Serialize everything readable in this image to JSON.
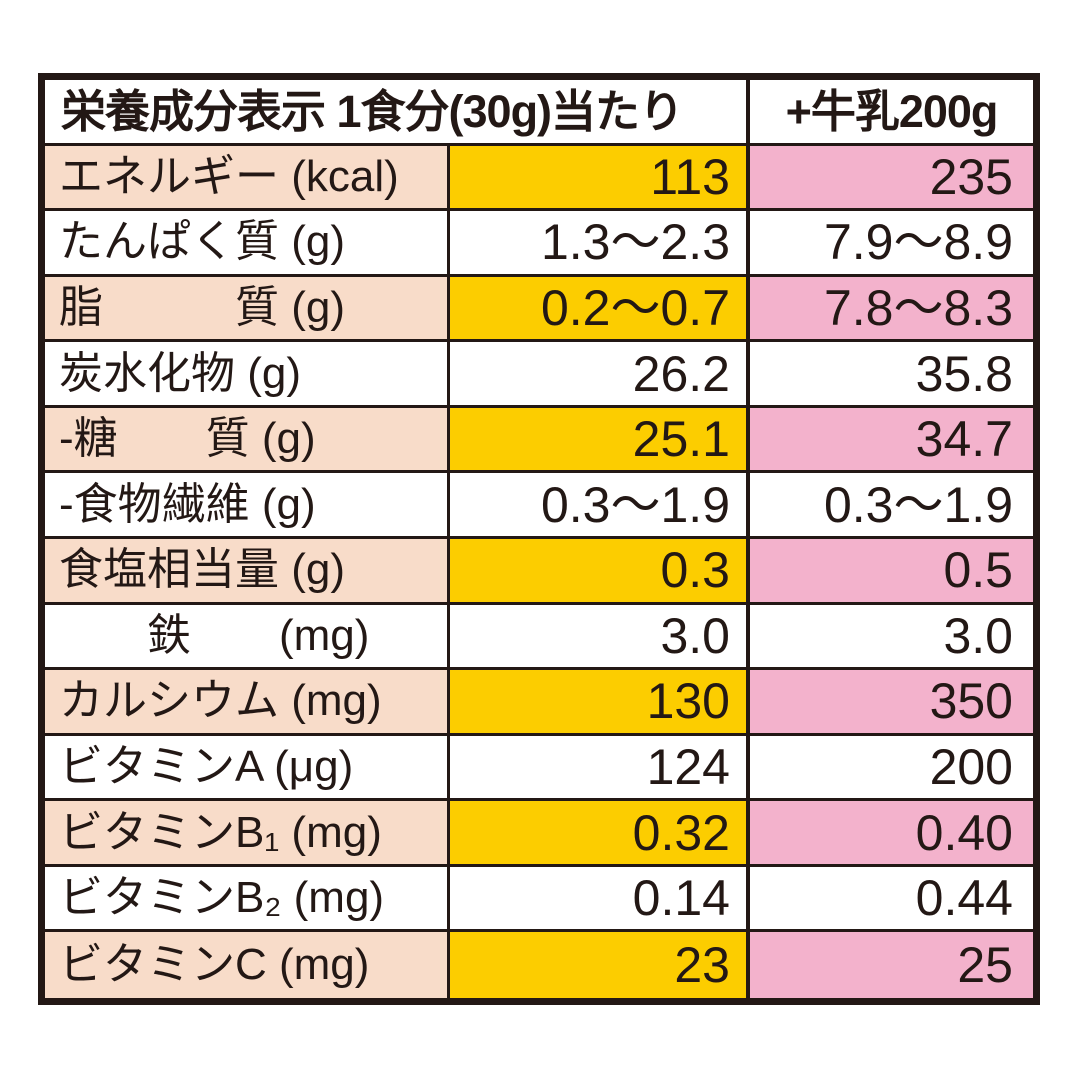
{
  "table": {
    "header": {
      "left": "栄養成分表示 1食分(30g)当たり",
      "right": "+牛乳200g"
    },
    "rows": [
      {
        "label": "エネルギー (kcal)",
        "per_serving": "113",
        "with_milk": "235",
        "highlight": true
      },
      {
        "label": "たんぱく質 (g)",
        "per_serving": "1.3〜2.3",
        "with_milk": "7.9〜8.9",
        "highlight": false
      },
      {
        "label": "脂　　　質 (g)",
        "per_serving": "0.2〜0.7",
        "with_milk": "7.8〜8.3",
        "highlight": true
      },
      {
        "label": "炭水化物 (g)",
        "per_serving": "26.2",
        "with_milk": "35.8",
        "highlight": false
      },
      {
        "label": "-糖　　質 (g)",
        "per_serving": "25.1",
        "with_milk": "34.7",
        "highlight": true
      },
      {
        "label": "-食物繊維 (g)",
        "per_serving": "0.3〜1.9",
        "with_milk": "0.3〜1.9",
        "highlight": false
      },
      {
        "label": "食塩相当量 (g)",
        "per_serving": "0.3",
        "with_milk": "0.5",
        "highlight": true
      },
      {
        "label": "　　鉄　　(mg)",
        "per_serving": "3.0",
        "with_milk": "3.0",
        "highlight": false
      },
      {
        "label": "カルシウム (mg)",
        "per_serving": "130",
        "with_milk": "350",
        "highlight": true
      },
      {
        "label": "ビタミンA (μg)",
        "per_serving": "124",
        "with_milk": "200",
        "highlight": false
      },
      {
        "label": "ビタミンB₁ (mg)",
        "per_serving": "0.32",
        "with_milk": "0.40",
        "highlight": true
      },
      {
        "label": "ビタミンB₂ (mg)",
        "per_serving": "0.14",
        "with_milk": "0.44",
        "highlight": false
      },
      {
        "label": "ビタミンC (mg)",
        "per_serving": "23",
        "with_milk": "25",
        "highlight": true
      }
    ]
  },
  "colors": {
    "page_bg": "#ffffff",
    "border": "#231815",
    "text": "#231815",
    "header_bg": "#ffffff",
    "label_bg": "#f8dcc9",
    "per_serving_bg": "#fccd00",
    "with_milk_bg": "#f3b2cc"
  }
}
